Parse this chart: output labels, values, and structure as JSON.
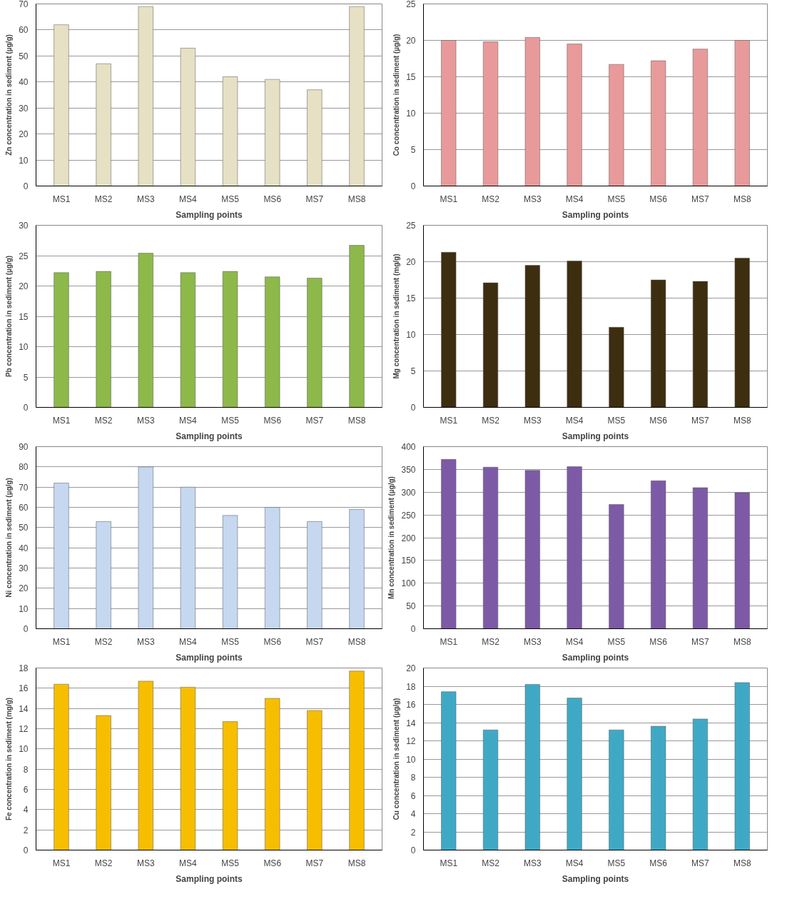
{
  "chart_data": [
    {
      "type": "bar",
      "categories": [
        "MS1",
        "MS2",
        "MS3",
        "MS4",
        "MS5",
        "MS6",
        "MS7",
        "MS8"
      ],
      "values": [
        62,
        47,
        69,
        53,
        42,
        41,
        37,
        69
      ],
      "color": "#e6e0c4",
      "ylim": [
        0,
        70
      ],
      "yticks": [
        0,
        10,
        20,
        30,
        40,
        50,
        60,
        70
      ],
      "ylabel": "Zn concentration in sediment (µg/g)",
      "xlabel": "Sampling points",
      "grid": "y"
    },
    {
      "type": "bar",
      "categories": [
        "MS1",
        "MS2",
        "MS3",
        "MS4",
        "MS5",
        "MS6",
        "MS7",
        "MS8"
      ],
      "values": [
        20,
        19.8,
        20.4,
        19.5,
        16.7,
        17.2,
        18.8,
        20
      ],
      "color": "#e89a9a",
      "ylim": [
        0,
        25
      ],
      "yticks": [
        0,
        5,
        10,
        15,
        20,
        25
      ],
      "ylabel": "Co concentration in sediment (µg/g)",
      "xlabel": "Sampling points",
      "grid": "y"
    },
    {
      "type": "bar",
      "categories": [
        "MS1",
        "MS2",
        "MS3",
        "MS4",
        "MS5",
        "MS6",
        "MS7",
        "MS8"
      ],
      "values": [
        22.2,
        22.4,
        25.4,
        22.2,
        22.4,
        21.5,
        21.3,
        26.7
      ],
      "color": "#8db84a",
      "ylim": [
        0,
        30
      ],
      "yticks": [
        0,
        5,
        10,
        15,
        20,
        25,
        30
      ],
      "ylabel": "Pb concentration in sediment (µg/g)",
      "xlabel": "Sampling points",
      "grid": "y"
    },
    {
      "type": "bar",
      "categories": [
        "MS1",
        "MS2",
        "MS3",
        "MS4",
        "MS5",
        "MS6",
        "MS7",
        "MS8"
      ],
      "values": [
        21.3,
        17.1,
        19.5,
        20.1,
        11,
        17.5,
        17.3,
        20.5
      ],
      "color": "#3d2e10",
      "ylim": [
        0,
        25
      ],
      "yticks": [
        0,
        5,
        10,
        15,
        20,
        25
      ],
      "ylabel": "Mg concentration in sediment (mg/g)",
      "xlabel": "Sampling points",
      "grid": "y"
    },
    {
      "type": "bar",
      "categories": [
        "MS1",
        "MS2",
        "MS3",
        "MS4",
        "MS5",
        "MS6",
        "MS7",
        "MS8"
      ],
      "values": [
        72,
        53,
        80,
        70,
        56,
        60,
        53,
        59
      ],
      "color": "#c5d8f0",
      "ylim": [
        0,
        90
      ],
      "yticks": [
        0,
        10,
        20,
        30,
        40,
        50,
        60,
        70,
        80,
        90
      ],
      "ylabel": "Ni concentration in sediment (µg/g)",
      "xlabel": "Sampling points",
      "grid": "y"
    },
    {
      "type": "bar",
      "categories": [
        "MS1",
        "MS2",
        "MS3",
        "MS4",
        "MS5",
        "MS6",
        "MS7",
        "MS8"
      ],
      "values": [
        372,
        355,
        348,
        356,
        273,
        325,
        310,
        299
      ],
      "color": "#7d5aa6",
      "ylim": [
        0,
        400
      ],
      "yticks": [
        0,
        50,
        100,
        150,
        200,
        250,
        300,
        350,
        400
      ],
      "ylabel": "Mn concentration in sediment (µg/g)",
      "xlabel": "Sampling points",
      "grid": "y"
    },
    {
      "type": "bar",
      "categories": [
        "MS1",
        "MS2",
        "MS3",
        "MS4",
        "MS5",
        "MS6",
        "MS7",
        "MS8"
      ],
      "values": [
        16.4,
        13.3,
        16.7,
        16.1,
        12.7,
        15,
        13.8,
        17.7
      ],
      "color": "#f7be00",
      "ylim": [
        0,
        18
      ],
      "yticks": [
        0,
        2,
        4,
        6,
        8,
        10,
        12,
        14,
        16,
        18
      ],
      "ylabel": "Fe concentration in sediment (mg/g)",
      "xlabel": "Sampling points",
      "grid": "y"
    },
    {
      "type": "bar",
      "categories": [
        "MS1",
        "MS2",
        "MS3",
        "MS4",
        "MS5",
        "MS6",
        "MS7",
        "MS8"
      ],
      "values": [
        17.4,
        13.2,
        18.2,
        16.7,
        13.2,
        13.6,
        14.4,
        18.4
      ],
      "color": "#3fa9c5",
      "ylim": [
        0,
        20
      ],
      "yticks": [
        0,
        2,
        4,
        6,
        8,
        10,
        12,
        14,
        16,
        18,
        20
      ],
      "ylabel": "Cu concentration in sediment (µg/g)",
      "xlabel": "Sampling points",
      "grid": "y"
    }
  ]
}
